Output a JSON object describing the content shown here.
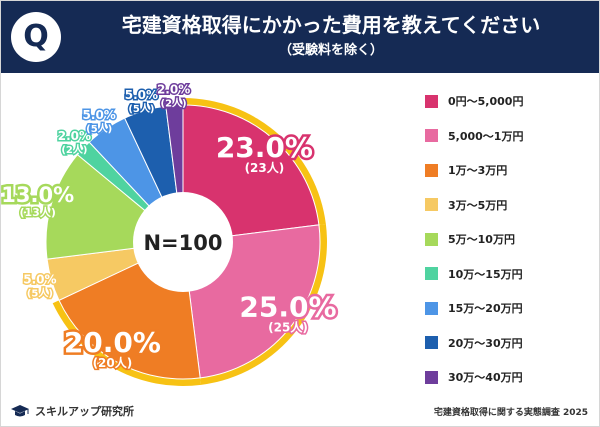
{
  "header": {
    "q_mark": "Q",
    "title": "宅建資格取得にかかった費用を教えてください",
    "subtitle": "（受験料を除く）"
  },
  "chart_data": {
    "type": "pie",
    "title": "宅建資格取得にかかった費用を教えてください（受験料を除く）",
    "center_label": "N=100",
    "categories": [
      "0円～5,000円",
      "5,000～1万円",
      "1万～3万円",
      "3万～5万円",
      "5万～10万円",
      "10万～15万円",
      "15万～20万円",
      "20万～30万円",
      "30万～40万円"
    ],
    "values": [
      23.0,
      25.0,
      20.0,
      5.0,
      13.0,
      2.0,
      5.0,
      5.0,
      2.0
    ],
    "pct_labels": [
      "23.0%",
      "25.0%",
      "20.0%",
      "5.0%",
      "13.0%",
      "2.0%",
      "5.0%",
      "5.0%",
      "2.0%"
    ],
    "count_labels": [
      "(23人)",
      "(25人)",
      "(20人)",
      "(5人)",
      "(13人)",
      "(2人)",
      "(5人)",
      "(5人)",
      "(2人)"
    ],
    "colors": [
      "#d8336e",
      "#e86aa0",
      "#ef7d24",
      "#f6c963",
      "#a6d95b",
      "#4fd3a0",
      "#4d95e6",
      "#1d5fae",
      "#6e3d9c"
    ],
    "highlight_color": "#f7c214",
    "legend_position": "right"
  },
  "footer": {
    "logo_text": "スキルアップ研究所",
    "source": "宅建資格取得に関する実態調査 2025"
  }
}
